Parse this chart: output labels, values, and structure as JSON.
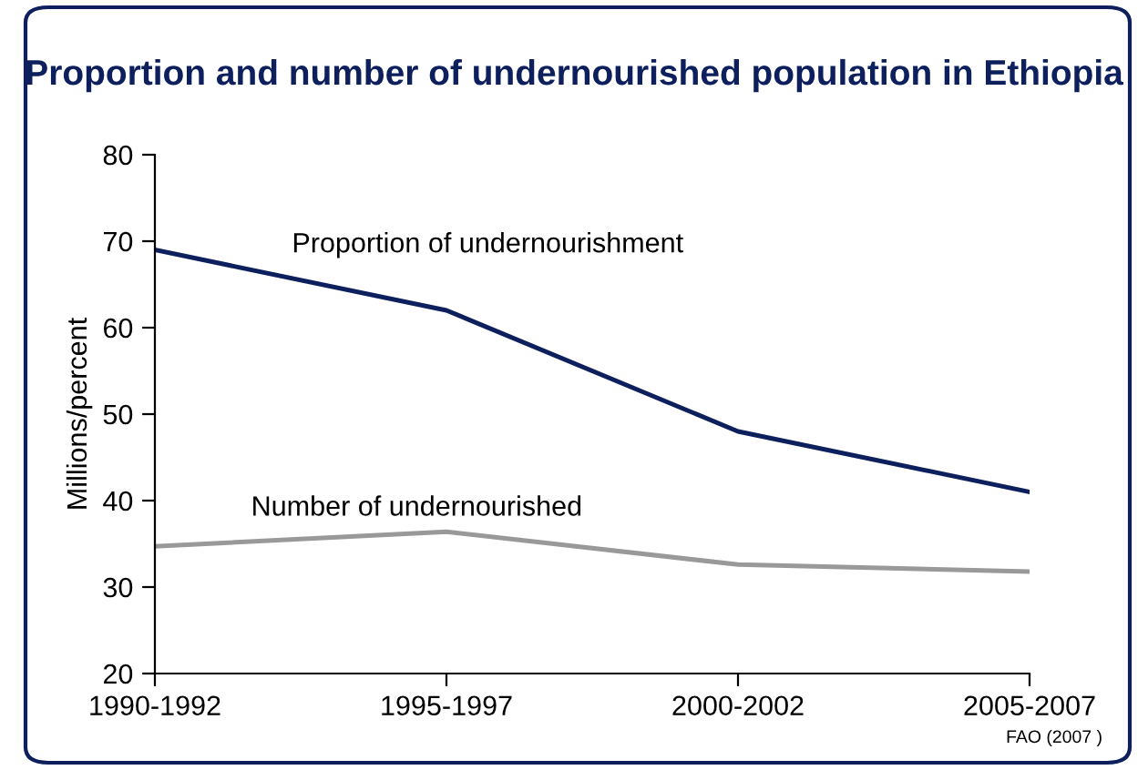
{
  "chart_data": {
    "type": "line",
    "title": "Proportion and number of undernourished population in Ethiopia",
    "ylabel": "Millions/percent",
    "categories": [
      "1990-1992",
      "1995-1997",
      "2000-2002",
      "2005-2007"
    ],
    "series": [
      {
        "name": "Proportion of undernourishment",
        "color": "#0d1f5c",
        "values": [
          69,
          62,
          48,
          41
        ]
      },
      {
        "name": "Number of undernourished",
        "color": "#999999",
        "values": [
          34.7,
          36.4,
          32.6,
          31.8
        ]
      }
    ],
    "ylim": [
      20,
      80
    ],
    "yticks": [
      20,
      30,
      40,
      50,
      60,
      70,
      80
    ],
    "grid": false,
    "legend": false,
    "marker": "none",
    "annotations": [
      "FAO (2007 )"
    ]
  }
}
